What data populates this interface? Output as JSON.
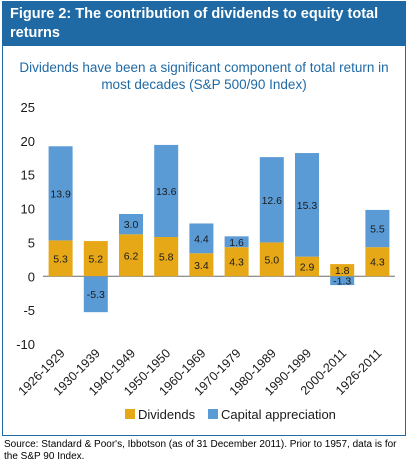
{
  "figure": {
    "header_title": "Figure 2: The contribution of dividends to equity total returns",
    "subtitle": "Dividends have been a significant component of total return in most decades (S&P 500/90 Index)",
    "source_note": "Source: Standard & Poor's, Ibbotson (as of 31 December 2011). Prior to 1957, data is for the S&P 90 Index."
  },
  "colors": {
    "header_bg": "#1f6aa5",
    "dividends": "#e6a817",
    "capital_appreciation": "#5b9bd5",
    "text_dark": "#1a1a1a"
  },
  "chart_data": {
    "type": "bar",
    "stacked": true,
    "categories": [
      "1926-1929",
      "1930-1939",
      "1940-1949",
      "1950-1950",
      "1960-1969",
      "1970-1979",
      "1980-1989",
      "1990-1999",
      "2000-2011",
      "1926-2011"
    ],
    "series": [
      {
        "name": "Dividends",
        "values": [
          5.3,
          5.2,
          6.2,
          5.8,
          3.4,
          4.3,
          5.0,
          2.9,
          1.8,
          4.3
        ]
      },
      {
        "name": "Capital appreciation",
        "values": [
          13.9,
          -5.3,
          3.0,
          13.6,
          4.4,
          1.6,
          12.6,
          15.3,
          -1.3,
          5.5
        ]
      }
    ],
    "value_labels": {
      "Dividends": [
        "5.3",
        "5.2",
        "6.2",
        "5.8",
        "3.4",
        "4.3",
        "5.0",
        "2.9",
        "1.8",
        "4.3"
      ],
      "Capital appreciation": [
        "13.9",
        "-5.3",
        "3.0",
        "13.6",
        "4.4",
        "1.6",
        "12.6",
        "15.3",
        "-1.3",
        "5.5"
      ]
    },
    "ylim": [
      -10,
      25
    ],
    "yticks": [
      25,
      20,
      15,
      10,
      5,
      0,
      -5,
      -10
    ],
    "ytick_labels": [
      "25",
      "20",
      "15",
      "10",
      "5",
      "0",
      "-5",
      "-10"
    ],
    "grid": false,
    "legend_position": "bottom"
  }
}
